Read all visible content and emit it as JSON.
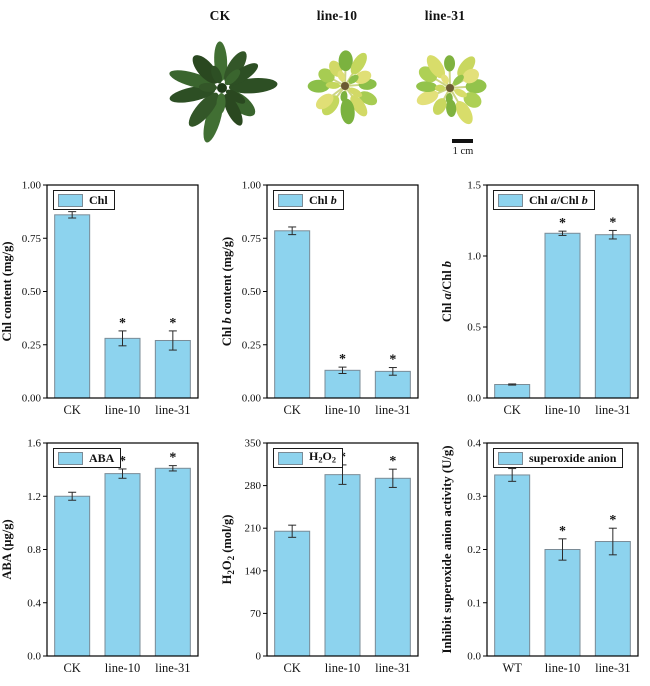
{
  "figure": {
    "plants": [
      {
        "label": "CK",
        "type": "dark",
        "leaf_palette": [
          "#2d4f24",
          "#3a652e",
          "#2a4820",
          "#416f33",
          "#335628"
        ]
      },
      {
        "label": "line-10",
        "type": "pale",
        "leaf_palette": [
          "#8bbf49",
          "#a7cc52",
          "#d2d966",
          "#7bb23f",
          "#c4d75d",
          "#e0df76"
        ]
      },
      {
        "label": "line-31",
        "type": "pale",
        "leaf_palette": [
          "#93c34b",
          "#aed055",
          "#d8dd6a",
          "#7fb23f",
          "#c9d75f",
          "#e3e07a"
        ]
      }
    ],
    "scale_bar_label": "1 cm"
  },
  "colors": {
    "bar_fill": "#8DD3EE",
    "bar_stroke": "#7A8B96",
    "axis": "#000000",
    "error_bar": "#2a2a2a",
    "petiole": "#cdd584",
    "center_dark": "#1f3a18",
    "center_pale": "#6b5a33"
  },
  "chart_data": [
    {
      "id": "chl",
      "type": "bar",
      "legend_label": [
        {
          "t": "Chl"
        }
      ],
      "ylabel": [
        {
          "t": "Chl content (mg/g)"
        }
      ],
      "categories": [
        "CK",
        "line-10",
        "line-31"
      ],
      "values": [
        0.86,
        0.28,
        0.27
      ],
      "errors": [
        0.015,
        0.035,
        0.045
      ],
      "significant": [
        false,
        true,
        true
      ],
      "ylim": [
        0,
        1.0
      ],
      "yticks": [
        {
          "v": 0,
          "label": "0.00"
        },
        {
          "v": 0.25,
          "label": "0.25"
        },
        {
          "v": 0.5,
          "label": "0.50"
        },
        {
          "v": 0.75,
          "label": "0.75"
        },
        {
          "v": 1.0,
          "label": "1.00"
        }
      ],
      "grid": false,
      "legend_position": "top-left"
    },
    {
      "id": "chl-b",
      "type": "bar",
      "legend_label": [
        {
          "t": "Chl "
        },
        {
          "t": "b",
          "italic": true
        }
      ],
      "ylabel": [
        {
          "t": "Chl "
        },
        {
          "t": "b",
          "italic": true
        },
        {
          "t": " content (mg/g)"
        }
      ],
      "categories": [
        "CK",
        "line-10",
        "line-31"
      ],
      "values": [
        0.785,
        0.13,
        0.125
      ],
      "errors": [
        0.018,
        0.015,
        0.018
      ],
      "significant": [
        false,
        true,
        true
      ],
      "ylim": [
        0,
        1.0
      ],
      "yticks": [
        {
          "v": 0,
          "label": "0.00"
        },
        {
          "v": 0.25,
          "label": "0.25"
        },
        {
          "v": 0.5,
          "label": "0.50"
        },
        {
          "v": 0.75,
          "label": "0.75"
        },
        {
          "v": 1.0,
          "label": "1.00"
        }
      ],
      "grid": false,
      "legend_position": "top-left"
    },
    {
      "id": "chl-a-b",
      "type": "bar",
      "legend_label": [
        {
          "t": "Chl "
        },
        {
          "t": "a",
          "italic": true
        },
        {
          "t": "/Chl "
        },
        {
          "t": "b",
          "italic": true
        }
      ],
      "ylabel": [
        {
          "t": "Chl "
        },
        {
          "t": "a",
          "italic": true
        },
        {
          "t": "/Chl "
        },
        {
          "t": "b",
          "italic": true
        }
      ],
      "categories": [
        "CK",
        "line-10",
        "line-31"
      ],
      "values": [
        0.095,
        1.16,
        1.15
      ],
      "errors": [
        0.004,
        0.015,
        0.03
      ],
      "significant": [
        false,
        true,
        true
      ],
      "ylim": [
        0,
        1.5
      ],
      "yticks": [
        {
          "v": 0,
          "label": "0.0"
        },
        {
          "v": 0.5,
          "label": "0.5"
        },
        {
          "v": 1.0,
          "label": "1.0"
        },
        {
          "v": 1.5,
          "label": "1.5"
        }
      ],
      "grid": false,
      "legend_position": "top-left"
    },
    {
      "id": "aba",
      "type": "bar",
      "legend_label": [
        {
          "t": "ABA"
        }
      ],
      "ylabel": [
        {
          "t": "ABA (μg/g)"
        }
      ],
      "categories": [
        "CK",
        "line-10",
        "line-31"
      ],
      "values": [
        1.2,
        1.37,
        1.41
      ],
      "errors": [
        0.03,
        0.035,
        0.02
      ],
      "significant": [
        false,
        true,
        true
      ],
      "ylim": [
        0,
        1.6
      ],
      "yticks": [
        {
          "v": 0,
          "label": "0.0"
        },
        {
          "v": 0.4,
          "label": "0.4"
        },
        {
          "v": 0.8,
          "label": "0.8"
        },
        {
          "v": 1.2,
          "label": "1.2"
        },
        {
          "v": 1.6,
          "label": "1.6"
        }
      ],
      "grid": false,
      "legend_position": "top-left"
    },
    {
      "id": "h2o2",
      "type": "bar",
      "legend_label": [
        {
          "t": "H"
        },
        {
          "t": "2",
          "sub": true
        },
        {
          "t": "O"
        },
        {
          "t": "2",
          "sub": true
        }
      ],
      "ylabel": [
        {
          "t": "H"
        },
        {
          "t": "2",
          "sub": true
        },
        {
          "t": "O"
        },
        {
          "t": "2",
          "sub": true
        },
        {
          "t": " (mol/g)"
        }
      ],
      "categories": [
        "CK",
        "line-10",
        "line-31"
      ],
      "values": [
        205,
        298,
        292
      ],
      "errors": [
        10,
        16,
        15
      ],
      "significant": [
        false,
        true,
        true
      ],
      "ylim": [
        0,
        350
      ],
      "yticks": [
        {
          "v": 0,
          "label": "0"
        },
        {
          "v": 70,
          "label": "70"
        },
        {
          "v": 140,
          "label": "140"
        },
        {
          "v": 210,
          "label": "210"
        },
        {
          "v": 280,
          "label": "280"
        },
        {
          "v": 350,
          "label": "350"
        }
      ],
      "grid": false,
      "legend_position": "top-left"
    },
    {
      "id": "superoxide",
      "type": "bar",
      "legend_label": [
        {
          "t": "superoxide anion"
        }
      ],
      "ylabel": [
        {
          "t": "Inhibit superoxide anion activity (U/g)"
        }
      ],
      "categories": [
        "WT",
        "line-10",
        "line-31"
      ],
      "values": [
        0.34,
        0.2,
        0.215
      ],
      "errors": [
        0.012,
        0.02,
        0.025
      ],
      "significant": [
        false,
        true,
        true
      ],
      "ylim": [
        0,
        0.4
      ],
      "yticks": [
        {
          "v": 0,
          "label": "0.0"
        },
        {
          "v": 0.1,
          "label": "0.1"
        },
        {
          "v": 0.2,
          "label": "0.2"
        },
        {
          "v": 0.3,
          "label": "0.3"
        },
        {
          "v": 0.4,
          "label": "0.4"
        }
      ],
      "grid": false,
      "legend_position": "top-left"
    }
  ]
}
